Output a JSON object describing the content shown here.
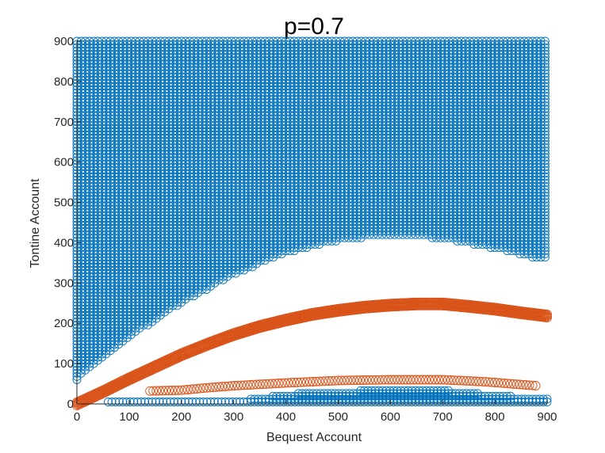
{
  "chart_data": {
    "type": "scatter",
    "title": "p=0.7",
    "xlabel": "Bequest Account",
    "ylabel": "Tontine Account",
    "xlim": [
      0,
      900
    ],
    "ylim": [
      0,
      900
    ],
    "xticks": [
      0,
      100,
      200,
      300,
      400,
      500,
      600,
      700,
      800,
      900
    ],
    "yticks": [
      0,
      100,
      200,
      300,
      400,
      500,
      600,
      700,
      800,
      900
    ],
    "grid": false,
    "legend": "none",
    "marker": "open-circle",
    "colors": {
      "region": "#0072BD",
      "policy": "#D95319",
      "axis": "#262626"
    },
    "series": [
      {
        "color": "#0072BD",
        "kind": "filled-grid-region",
        "x_range": [
          0,
          900
        ],
        "y_top": 900,
        "lower_boundary": [
          {
            "x": 0,
            "y": 60
          },
          {
            "x": 100,
            "y": 165
          },
          {
            "x": 200,
            "y": 250
          },
          {
            "x": 300,
            "y": 320
          },
          {
            "x": 400,
            "y": 375
          },
          {
            "x": 500,
            "y": 405
          },
          {
            "x": 600,
            "y": 420
          },
          {
            "x": 700,
            "y": 410
          },
          {
            "x": 800,
            "y": 385
          },
          {
            "x": 900,
            "y": 355
          }
        ]
      },
      {
        "color": "#0072BD",
        "kind": "band",
        "x_range": [
          60,
          900
        ],
        "y_lower": [
          {
            "x": 60,
            "y": 5
          },
          {
            "x": 900,
            "y": 5
          }
        ],
        "y_upper": [
          {
            "x": 60,
            "y": 5
          },
          {
            "x": 300,
            "y": 8
          },
          {
            "x": 450,
            "y": 30
          },
          {
            "x": 600,
            "y": 35
          },
          {
            "x": 700,
            "y": 35
          },
          {
            "x": 800,
            "y": 22
          },
          {
            "x": 900,
            "y": 12
          }
        ]
      },
      {
        "color": "#D95319",
        "kind": "curve-band",
        "points": [
          {
            "x": 0,
            "y": 0
          },
          {
            "x": 50,
            "y": 30
          },
          {
            "x": 100,
            "y": 62
          },
          {
            "x": 150,
            "y": 92
          },
          {
            "x": 200,
            "y": 122
          },
          {
            "x": 250,
            "y": 148
          },
          {
            "x": 300,
            "y": 172
          },
          {
            "x": 350,
            "y": 192
          },
          {
            "x": 400,
            "y": 208
          },
          {
            "x": 450,
            "y": 222
          },
          {
            "x": 500,
            "y": 232
          },
          {
            "x": 550,
            "y": 240
          },
          {
            "x": 600,
            "y": 245
          },
          {
            "x": 650,
            "y": 248
          },
          {
            "x": 700,
            "y": 248
          },
          {
            "x": 750,
            "y": 242
          },
          {
            "x": 800,
            "y": 235
          },
          {
            "x": 850,
            "y": 226
          },
          {
            "x": 900,
            "y": 218
          }
        ]
      },
      {
        "color": "#D95319",
        "kind": "curve",
        "points": [
          {
            "x": 140,
            "y": 32
          },
          {
            "x": 200,
            "y": 34
          },
          {
            "x": 250,
            "y": 40
          },
          {
            "x": 300,
            "y": 45
          },
          {
            "x": 400,
            "y": 52
          },
          {
            "x": 500,
            "y": 58
          },
          {
            "x": 600,
            "y": 60
          },
          {
            "x": 700,
            "y": 60
          },
          {
            "x": 780,
            "y": 55
          },
          {
            "x": 880,
            "y": 45
          }
        ]
      }
    ]
  }
}
